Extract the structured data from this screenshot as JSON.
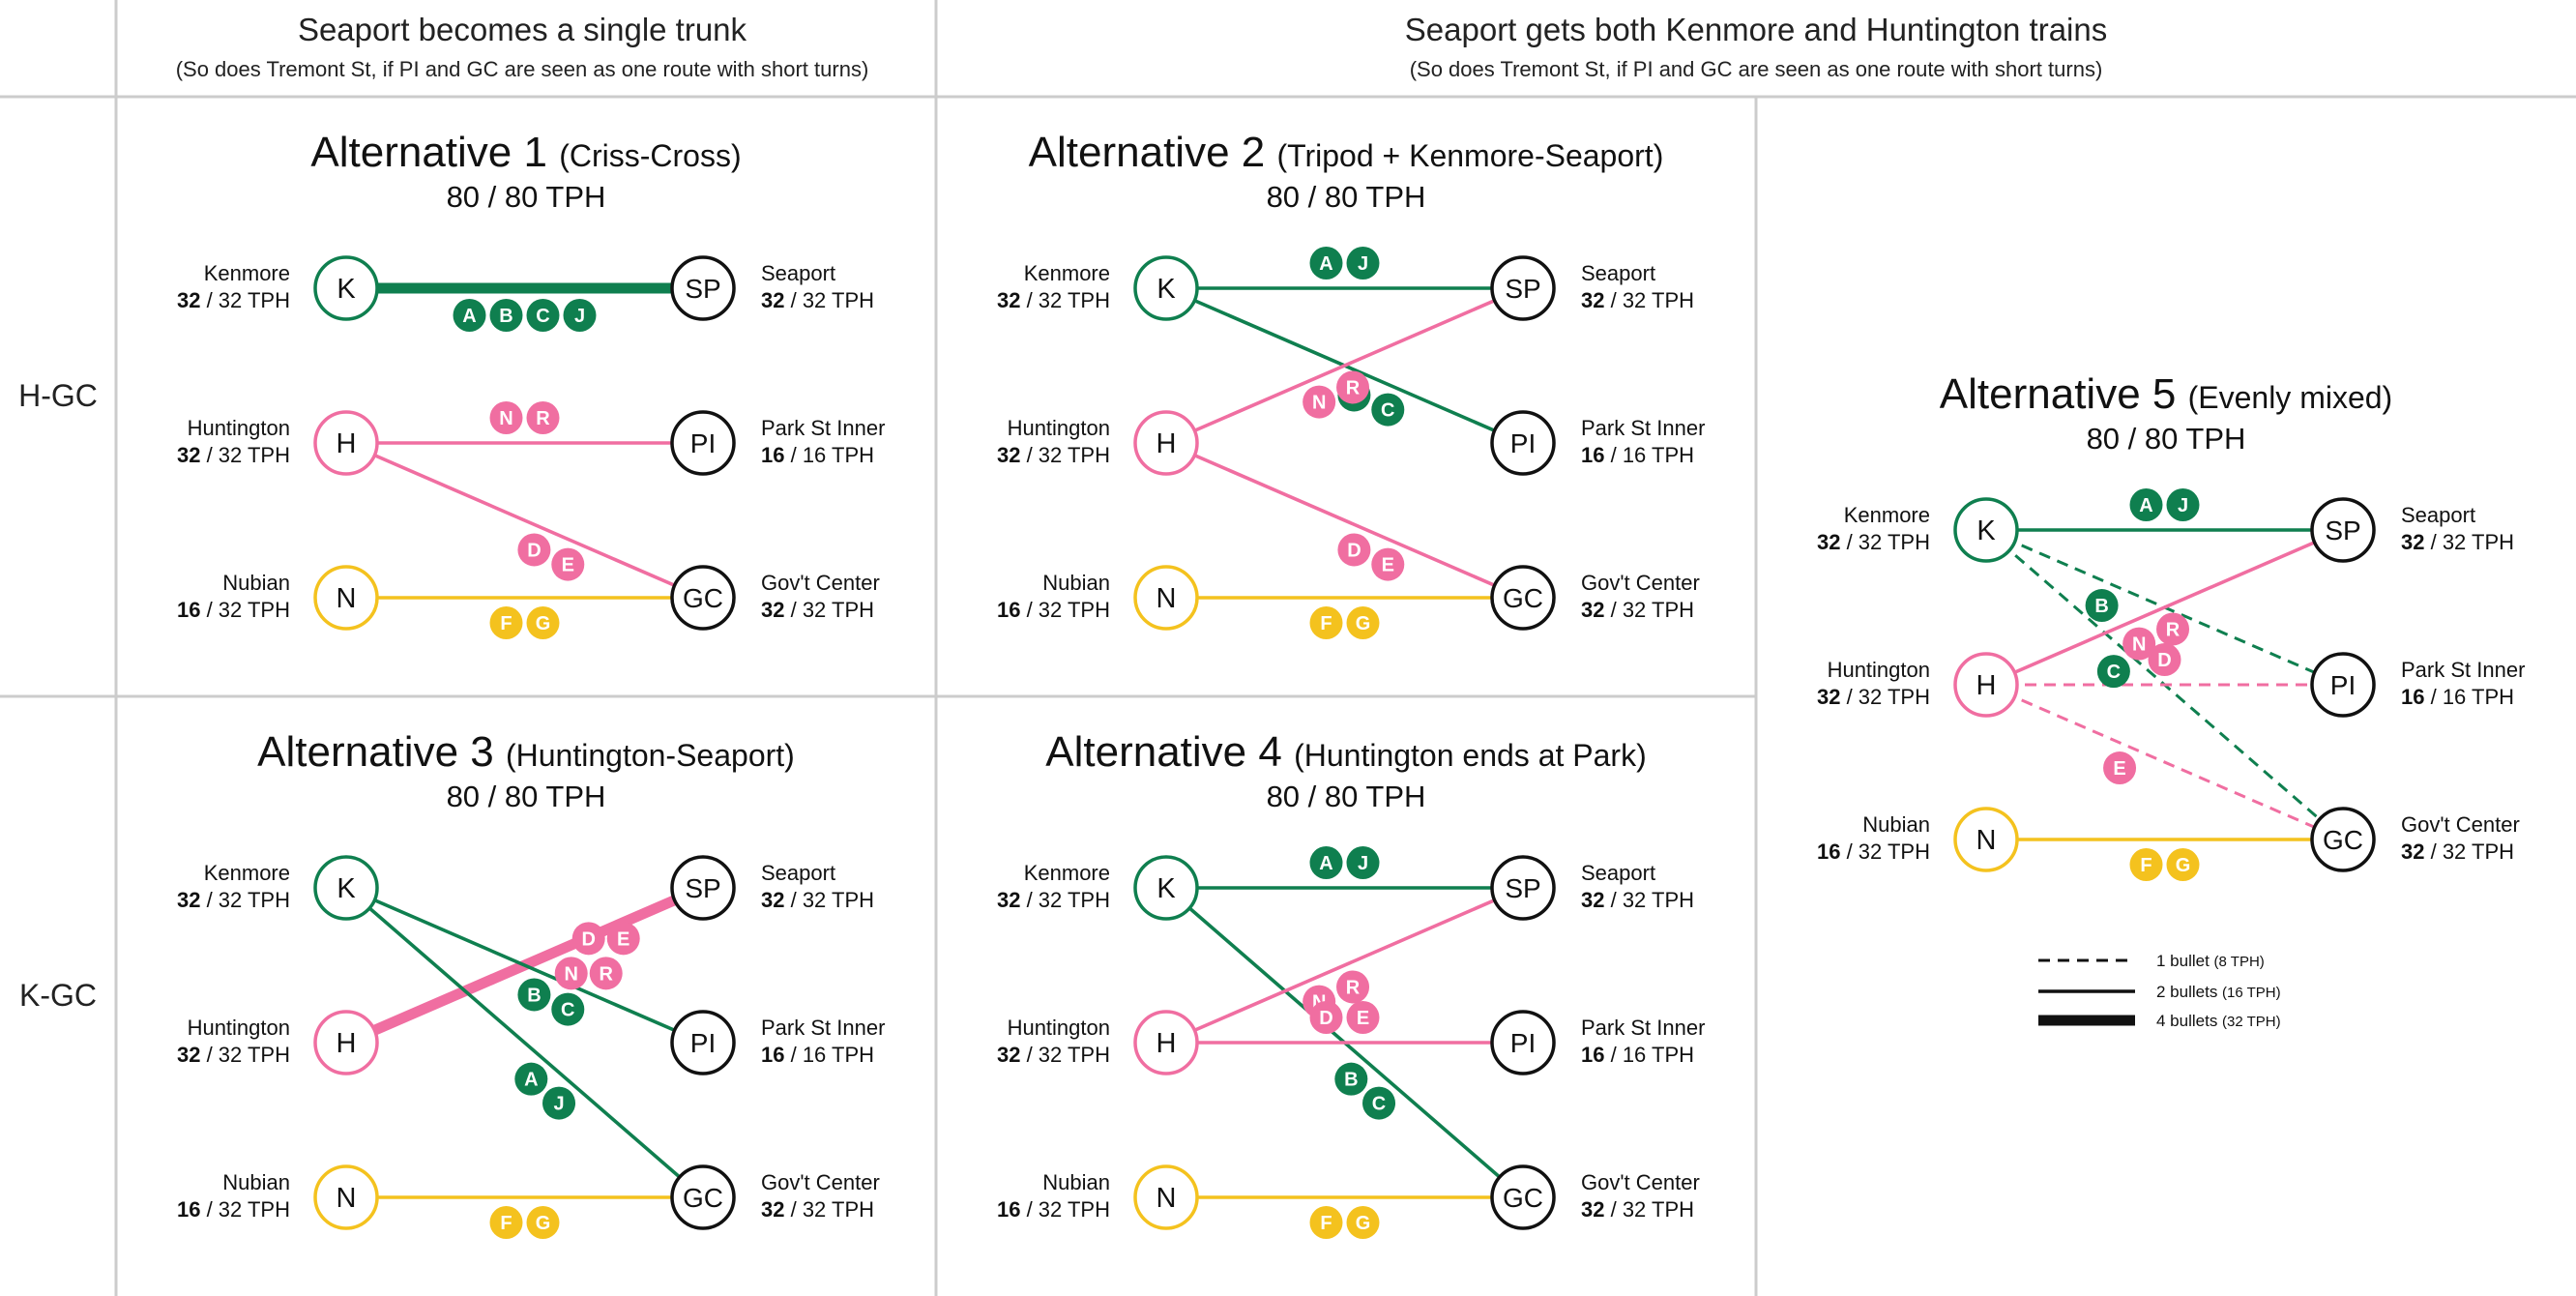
{
  "colors": {
    "green": "#0f7f4f",
    "pink": "#f06ea1",
    "yellow": "#f4c21e",
    "black": "#111111",
    "grid": "#cccccc"
  },
  "header": {
    "left_title": "Seaport becomes a single trunk",
    "left_subtitle": "(So does Tremont St, if PI and GC are seen as one route with short turns)",
    "right_title": "Seaport gets both Kenmore and Huntington trains",
    "right_subtitle": "(So does Tremont St, if PI and GC are seen as one route with short turns)"
  },
  "row_labels": [
    "H-GC",
    "K-GC"
  ],
  "alternatives": [
    {
      "name": "Alternative 1",
      "subtitle": "(Criss-Cross)",
      "tph": "80 / 80 TPH",
      "left_stations": [
        {
          "code": "K",
          "name": "Kenmore",
          "used": "32",
          "cap": " / 32 TPH",
          "color": "green"
        },
        {
          "code": "H",
          "name": "Huntington",
          "used": "32",
          "cap": " / 32 TPH",
          "color": "pink"
        },
        {
          "code": "N",
          "name": "Nubian",
          "used": "16",
          "cap": " / 32 TPH",
          "color": "yellow"
        }
      ],
      "right_stations": [
        {
          "code": "SP",
          "name": "Seaport",
          "used": "32",
          "cap": " / 32 TPH"
        },
        {
          "code": "PI",
          "name": "Park St Inner",
          "used": "16",
          "cap": " / 16 TPH"
        },
        {
          "code": "GC",
          "name": "Gov't Center",
          "used": "32",
          "cap": " / 32 TPH"
        }
      ],
      "routes": [
        {
          "from": "K",
          "to": "SP",
          "color": "green",
          "weight": 4,
          "bullets": [
            "A",
            "B",
            "C",
            "J"
          ]
        },
        {
          "from": "H",
          "to": "PI",
          "color": "pink",
          "weight": 2,
          "bullets": [
            "N",
            "R"
          ]
        },
        {
          "from": "H",
          "to": "GC",
          "color": "pink",
          "weight": 2,
          "bullets": [
            "D",
            "E"
          ]
        },
        {
          "from": "N",
          "to": "GC",
          "color": "yellow",
          "weight": 2,
          "bullets": [
            "F",
            "G"
          ]
        }
      ]
    },
    {
      "name": "Alternative 2",
      "subtitle": "(Tripod + Kenmore-Seaport)",
      "tph": "80 / 80 TPH",
      "left_stations": [
        {
          "code": "K",
          "name": "Kenmore",
          "used": "32",
          "cap": " / 32 TPH",
          "color": "green"
        },
        {
          "code": "H",
          "name": "Huntington",
          "used": "32",
          "cap": " / 32 TPH",
          "color": "pink"
        },
        {
          "code": "N",
          "name": "Nubian",
          "used": "16",
          "cap": " / 32 TPH",
          "color": "yellow"
        }
      ],
      "right_stations": [
        {
          "code": "SP",
          "name": "Seaport",
          "used": "32",
          "cap": " / 32 TPH"
        },
        {
          "code": "PI",
          "name": "Park St Inner",
          "used": "16",
          "cap": " / 16 TPH"
        },
        {
          "code": "GC",
          "name": "Gov't Center",
          "used": "32",
          "cap": " / 32 TPH"
        }
      ],
      "routes": [
        {
          "from": "K",
          "to": "SP",
          "color": "green",
          "weight": 2,
          "bullets": [
            "A",
            "J"
          ]
        },
        {
          "from": "K",
          "to": "PI",
          "color": "green",
          "weight": 2,
          "bullets": [
            "B",
            "C"
          ]
        },
        {
          "from": "H",
          "to": "SP",
          "color": "pink",
          "weight": 2,
          "bullets": [
            "N",
            "R"
          ]
        },
        {
          "from": "H",
          "to": "GC",
          "color": "pink",
          "weight": 2,
          "bullets": [
            "D",
            "E"
          ]
        },
        {
          "from": "N",
          "to": "GC",
          "color": "yellow",
          "weight": 2,
          "bullets": [
            "F",
            "G"
          ]
        }
      ]
    },
    {
      "name": "Alternative 3",
      "subtitle": "(Huntington-Seaport)",
      "tph": "80 / 80 TPH",
      "left_stations": [
        {
          "code": "K",
          "name": "Kenmore",
          "used": "32",
          "cap": " / 32 TPH",
          "color": "green"
        },
        {
          "code": "H",
          "name": "Huntington",
          "used": "32",
          "cap": " / 32 TPH",
          "color": "pink"
        },
        {
          "code": "N",
          "name": "Nubian",
          "used": "16",
          "cap": " / 32 TPH",
          "color": "yellow"
        }
      ],
      "right_stations": [
        {
          "code": "SP",
          "name": "Seaport",
          "used": "32",
          "cap": " / 32 TPH"
        },
        {
          "code": "PI",
          "name": "Park St Inner",
          "used": "16",
          "cap": " / 16 TPH"
        },
        {
          "code": "GC",
          "name": "Gov't Center",
          "used": "32",
          "cap": " / 32 TPH"
        }
      ],
      "routes": [
        {
          "from": "H",
          "to": "SP",
          "color": "pink",
          "weight": 4,
          "bullets": [
            "D",
            "E",
            "N",
            "R"
          ]
        },
        {
          "from": "K",
          "to": "PI",
          "color": "green",
          "weight": 2,
          "bullets": [
            "B",
            "C"
          ]
        },
        {
          "from": "K",
          "to": "GC",
          "color": "green",
          "weight": 2,
          "bullets": [
            "A",
            "J"
          ]
        },
        {
          "from": "N",
          "to": "GC",
          "color": "yellow",
          "weight": 2,
          "bullets": [
            "F",
            "G"
          ]
        }
      ]
    },
    {
      "name": "Alternative 4",
      "subtitle": "(Huntington ends at Park)",
      "tph": "80 / 80 TPH",
      "left_stations": [
        {
          "code": "K",
          "name": "Kenmore",
          "used": "32",
          "cap": " / 32 TPH",
          "color": "green"
        },
        {
          "code": "H",
          "name": "Huntington",
          "used": "32",
          "cap": " / 32 TPH",
          "color": "pink"
        },
        {
          "code": "N",
          "name": "Nubian",
          "used": "16",
          "cap": " / 32 TPH",
          "color": "yellow"
        }
      ],
      "right_stations": [
        {
          "code": "SP",
          "name": "Seaport",
          "used": "32",
          "cap": " / 32 TPH"
        },
        {
          "code": "PI",
          "name": "Park St Inner",
          "used": "16",
          "cap": " / 16 TPH"
        },
        {
          "code": "GC",
          "name": "Gov't Center",
          "used": "32",
          "cap": " / 32 TPH"
        }
      ],
      "routes": [
        {
          "from": "K",
          "to": "SP",
          "color": "green",
          "weight": 2,
          "bullets": [
            "A",
            "J"
          ]
        },
        {
          "from": "K",
          "to": "GC",
          "color": "green",
          "weight": 2,
          "bullets": [
            "B",
            "C"
          ]
        },
        {
          "from": "H",
          "to": "SP",
          "color": "pink",
          "weight": 2,
          "bullets": [
            "N",
            "R"
          ]
        },
        {
          "from": "H",
          "to": "PI",
          "color": "pink",
          "weight": 2,
          "bullets": [
            "D",
            "E"
          ]
        },
        {
          "from": "N",
          "to": "GC",
          "color": "yellow",
          "weight": 2,
          "bullets": [
            "F",
            "G"
          ]
        }
      ]
    },
    {
      "name": "Alternative 5",
      "subtitle": "(Evenly mixed)",
      "tph": "80 / 80 TPH",
      "left_stations": [
        {
          "code": "K",
          "name": "Kenmore",
          "used": "32",
          "cap": " / 32 TPH",
          "color": "green"
        },
        {
          "code": "H",
          "name": "Huntington",
          "used": "32",
          "cap": " / 32 TPH",
          "color": "pink"
        },
        {
          "code": "N",
          "name": "Nubian",
          "used": "16",
          "cap": " / 32 TPH",
          "color": "yellow"
        }
      ],
      "right_stations": [
        {
          "code": "SP",
          "name": "Seaport",
          "used": "32",
          "cap": " / 32 TPH"
        },
        {
          "code": "PI",
          "name": "Park St Inner",
          "used": "16",
          "cap": " / 16 TPH"
        },
        {
          "code": "GC",
          "name": "Gov't Center",
          "used": "32",
          "cap": " / 32 TPH"
        }
      ],
      "routes": [
        {
          "from": "K",
          "to": "SP",
          "color": "green",
          "weight": 2,
          "bullets": [
            "A",
            "J"
          ]
        },
        {
          "from": "K",
          "to": "PI",
          "color": "green",
          "weight": 1,
          "bullets": [
            "B"
          ]
        },
        {
          "from": "K",
          "to": "GC",
          "color": "green",
          "weight": 1,
          "bullets": [
            "C"
          ]
        },
        {
          "from": "H",
          "to": "SP",
          "color": "pink",
          "weight": 2,
          "bullets": [
            "N",
            "R"
          ]
        },
        {
          "from": "H",
          "to": "PI",
          "color": "pink",
          "weight": 1,
          "bullets": [
            "D"
          ]
        },
        {
          "from": "H",
          "to": "GC",
          "color": "pink",
          "weight": 1,
          "bullets": [
            "E"
          ]
        },
        {
          "from": "N",
          "to": "GC",
          "color": "yellow",
          "weight": 2,
          "bullets": [
            "F",
            "G"
          ]
        }
      ]
    }
  ],
  "legend": [
    {
      "label": "1 bullet",
      "note": "(8 TPH)",
      "weight": 1
    },
    {
      "label": "2 bullets",
      "note": "(16 TPH)",
      "weight": 2
    },
    {
      "label": "4 bullets",
      "note": "(32 TPH)",
      "weight": 4
    }
  ]
}
